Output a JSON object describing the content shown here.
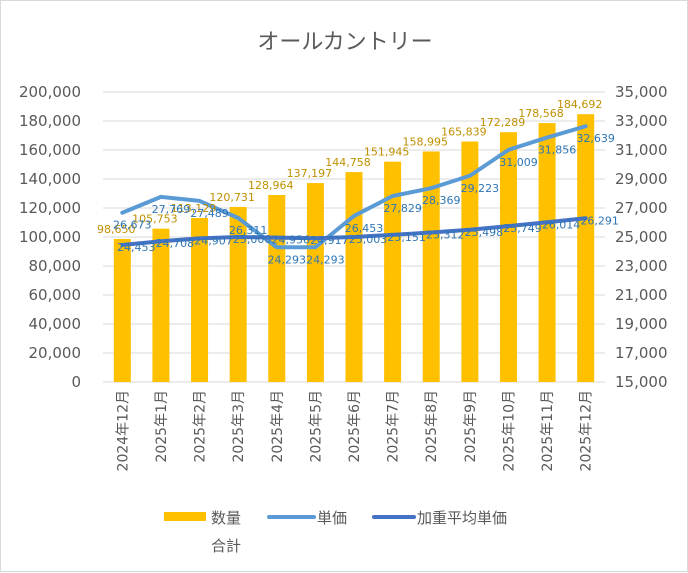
{
  "chart_data": {
    "type": "bar",
    "title": "オールカントリー",
    "categories": [
      "2024年12月",
      "2025年1月",
      "2025年2月",
      "2025年3月",
      "2025年4月",
      "2025年5月",
      "2025年6月",
      "2025年7月",
      "2025年8月",
      "2025年9月",
      "2025年10月",
      "2025年11月",
      "2025年12月"
    ],
    "series": [
      {
        "name": "数量合計",
        "type": "bar",
        "axis": "left",
        "color": "#FFC000",
        "values": [
          98650,
          105753,
          113129,
          120731,
          128964,
          137197,
          144758,
          151945,
          158995,
          165839,
          172289,
          178568,
          184692
        ]
      },
      {
        "name": "単価",
        "type": "line",
        "axis": "right",
        "color": "#5B9BD5",
        "values": [
          26673,
          27769,
          27489,
          26311,
          24293,
          24293,
          26453,
          27829,
          28369,
          29223,
          31009,
          31856,
          32639
        ]
      },
      {
        "name": "加重平均単価",
        "type": "line",
        "axis": "right",
        "color": "#4472C4",
        "values": [
          24453,
          24708,
          24907,
          25000,
          24956,
          24917,
          25003,
          25151,
          25312,
          25498,
          25749,
          26014,
          26291
        ]
      }
    ],
    "y_left": {
      "min": 0,
      "max": 200000,
      "ticks": [
        "0",
        "20,000",
        "40,000",
        "60,000",
        "80,000",
        "100,000",
        "120,000",
        "140,000",
        "160,000",
        "180,000",
        "200,000"
      ]
    },
    "y_right": {
      "min": 15000,
      "max": 35000,
      "ticks": [
        "15,000",
        "17,000",
        "19,000",
        "21,000",
        "23,000",
        "25,000",
        "27,000",
        "29,000",
        "31,000",
        "33,000",
        "35,000"
      ]
    },
    "grid": true,
    "legend_position": "bottom",
    "legend": [
      "数量合計",
      "単価",
      "加重平均単価"
    ],
    "label_colors": {
      "bar": "#BF9000",
      "line": "#2E75B6"
    }
  }
}
